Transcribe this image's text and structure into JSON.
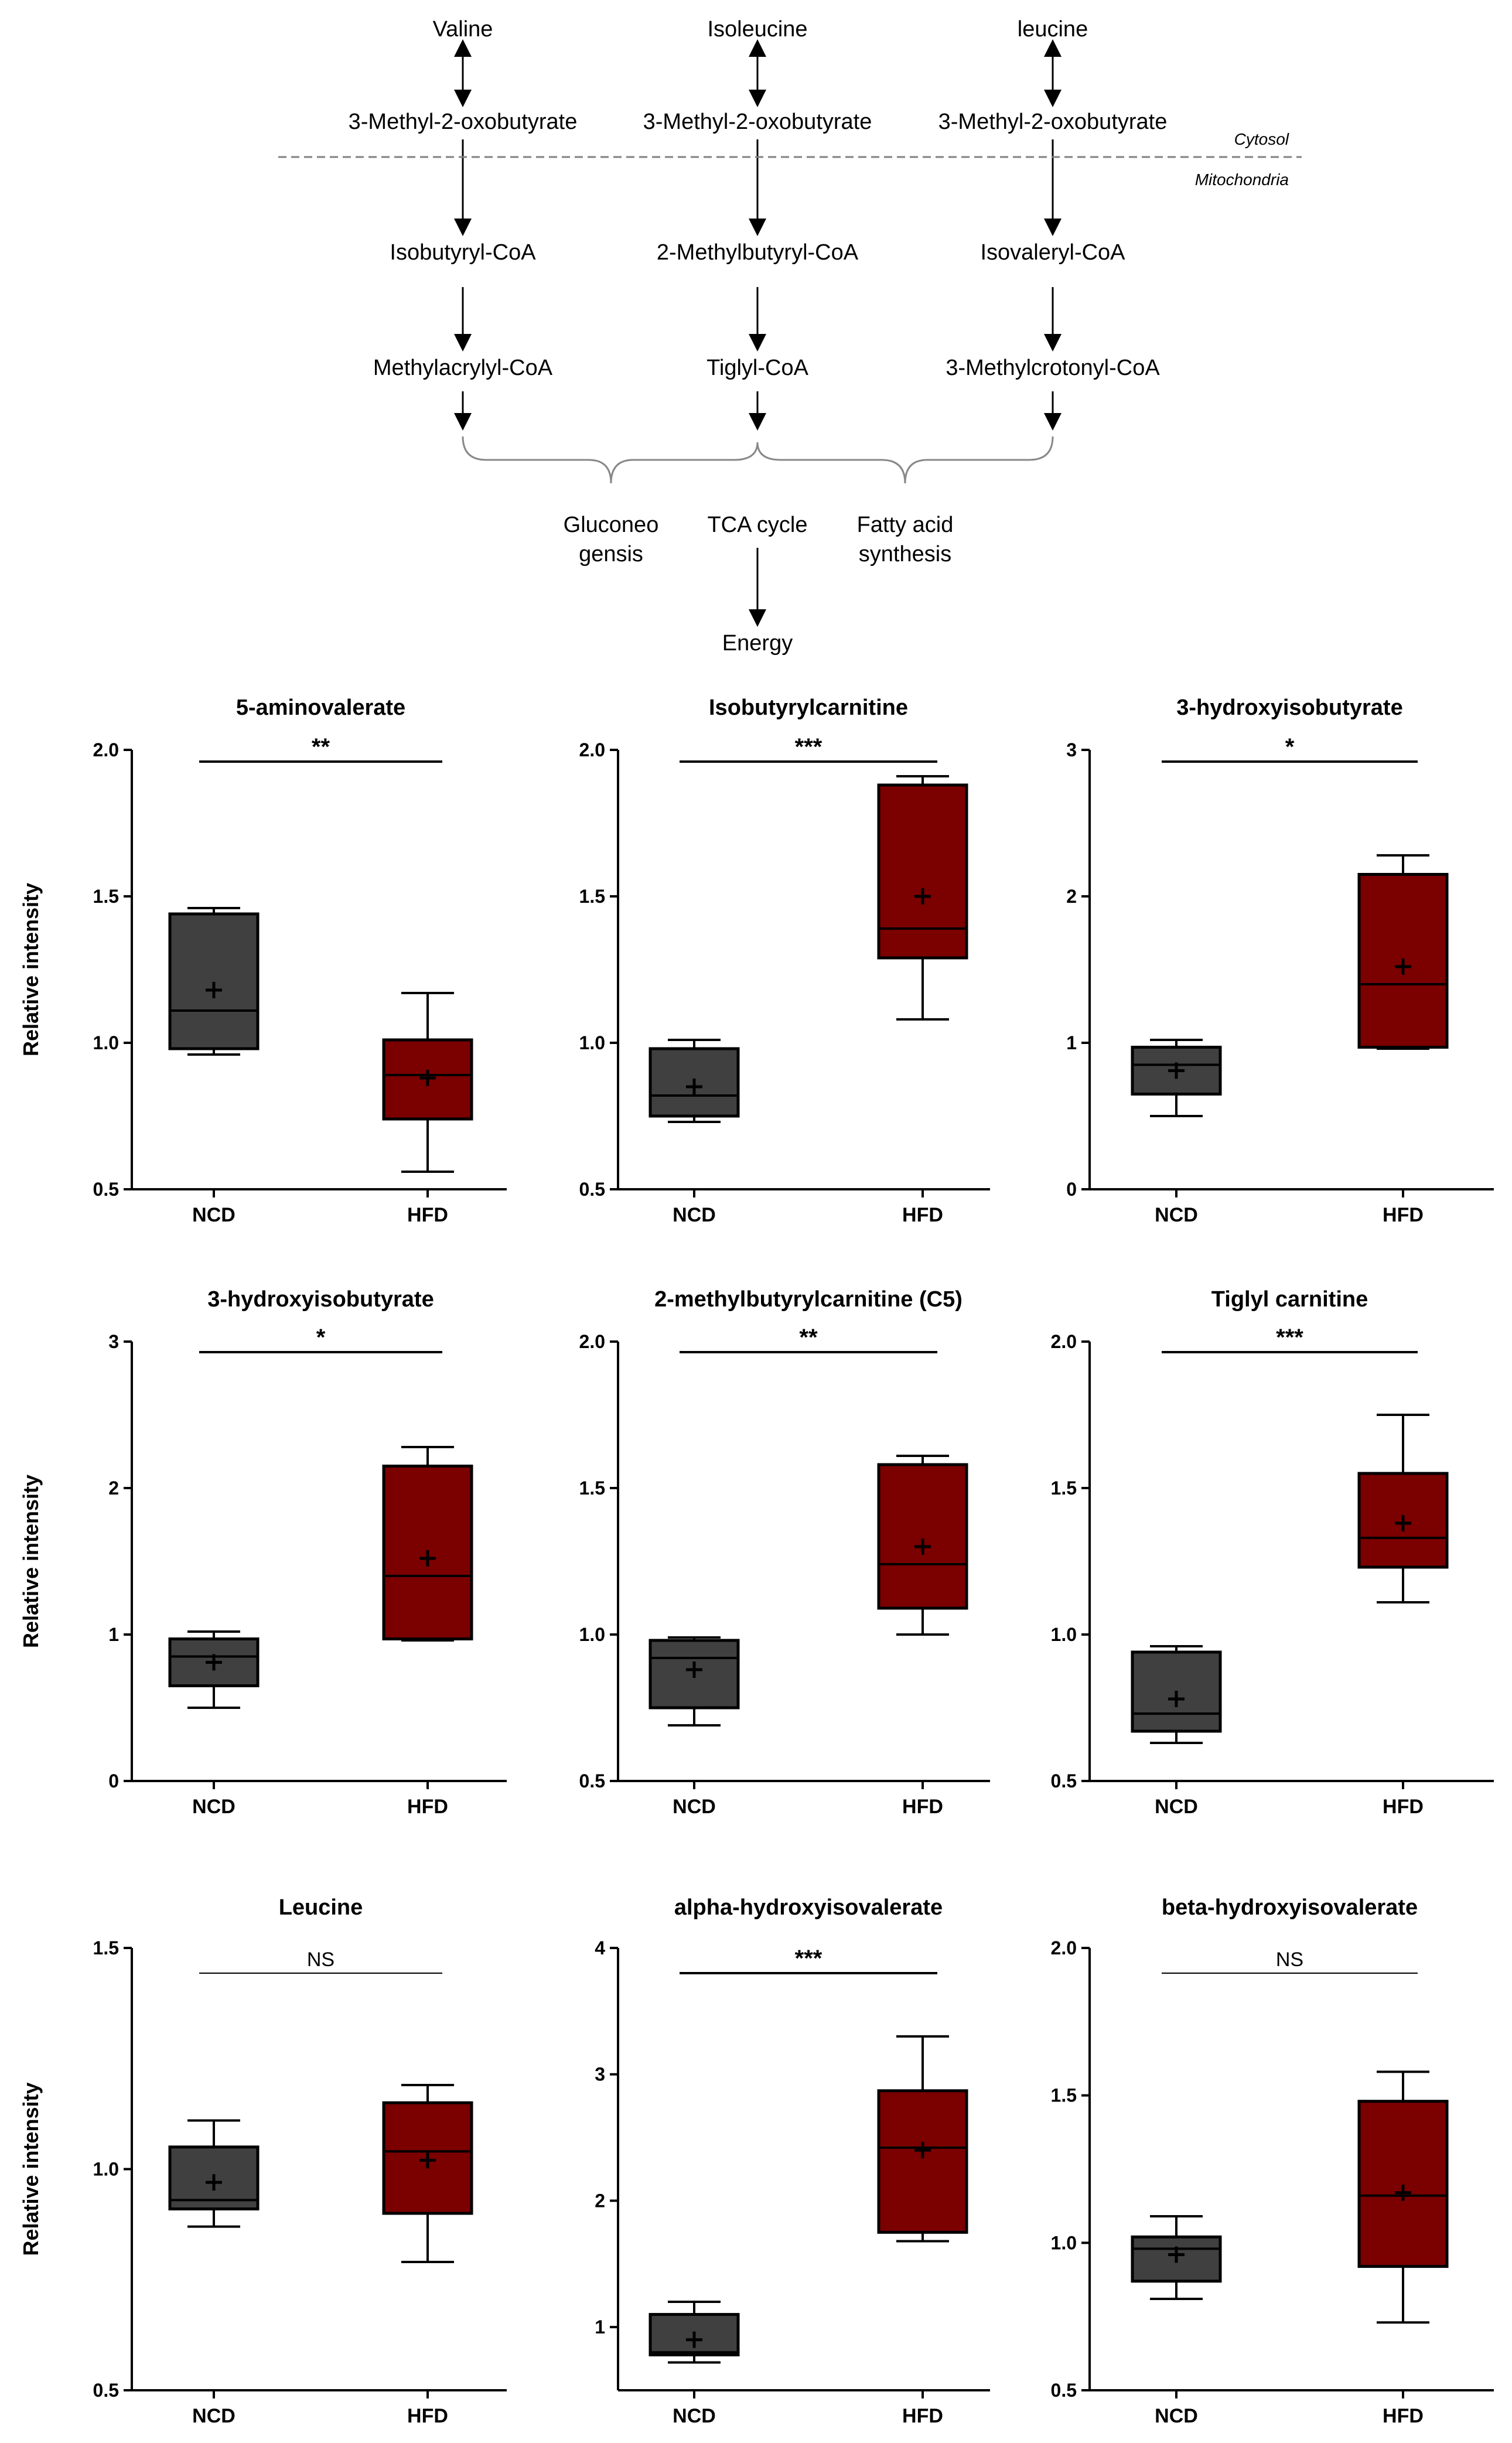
{
  "pathway": {
    "aminoacids": [
      "Valine",
      "Isoleucine",
      "leucine"
    ],
    "ketoacids": [
      "3-Methyl-2-oxobutyrate",
      "3-Methyl-2-oxobutyrate",
      "3-Methyl-2-oxobutyrate"
    ],
    "cytosol_label": "Cytosol",
    "mito_label": "Mitochondria",
    "acylcoa": [
      "Isobutyryl-CoA",
      "2-Methylbutyryl-CoA",
      "Isovaleryl-CoA"
    ],
    "enoylcoa": [
      "Methylacrylyl-CoA",
      "Tiglyl-CoA",
      "3-Methylcrotonyl-CoA"
    ],
    "gluconeo": [
      "Gluconeo",
      "gensis"
    ],
    "tca": "TCA cycle",
    "fatty": [
      "Fatty acid",
      "synthesis"
    ],
    "energy": "Energy"
  },
  "y_axis_title": "Relative intensity",
  "colors": {
    "ncd": "#404040",
    "hfd": "#7b0000",
    "line": "#000000"
  },
  "chart_data": [
    {
      "type": "boxplot",
      "title": "5-aminovalerate",
      "sig": "**",
      "ylim": [
        0.5,
        2.0
      ],
      "yticks": [
        "0.5",
        "1.0",
        "1.5",
        "2.0"
      ],
      "categories": [
        "NCD",
        "HFD"
      ],
      "boxes": [
        {
          "min": 0.96,
          "q1": 0.98,
          "median": 1.11,
          "q3": 1.44,
          "max": 1.46,
          "mean": 1.18
        },
        {
          "min": 0.56,
          "q1": 0.74,
          "median": 0.89,
          "q3": 1.01,
          "max": 1.17,
          "mean": 0.88
        }
      ]
    },
    {
      "type": "boxplot",
      "title": "Isobutyrylcarnitine",
      "sig": "***",
      "ylim": [
        0.5,
        2.0
      ],
      "yticks": [
        "0.5",
        "1.0",
        "1.5",
        "2.0"
      ],
      "categories": [
        "NCD",
        "HFD"
      ],
      "boxes": [
        {
          "min": 0.73,
          "q1": 0.75,
          "median": 0.82,
          "q3": 0.98,
          "max": 1.01,
          "mean": 0.85
        },
        {
          "min": 1.08,
          "q1": 1.29,
          "median": 1.39,
          "q3": 1.88,
          "max": 1.91,
          "mean": 1.5
        }
      ]
    },
    {
      "type": "boxplot",
      "title": "3-hydroxyisobutyrate",
      "sig": "*",
      "ylim": [
        0,
        3
      ],
      "yticks": [
        "0",
        "1",
        "2",
        "3"
      ],
      "categories": [
        "NCD",
        "HFD"
      ],
      "boxes": [
        {
          "min": 0.5,
          "q1": 0.65,
          "median": 0.85,
          "q3": 0.97,
          "max": 1.02,
          "mean": 0.81
        },
        {
          "min": 0.96,
          "q1": 0.97,
          "median": 1.4,
          "q3": 2.15,
          "max": 2.28,
          "mean": 1.52
        }
      ]
    },
    {
      "type": "boxplot",
      "title": "3-hydroxyisobutyrate",
      "sig": "*",
      "ylim": [
        0,
        3
      ],
      "yticks": [
        "0",
        "1",
        "2",
        "3"
      ],
      "categories": [
        "NCD",
        "HFD"
      ],
      "boxes": [
        {
          "min": 0.5,
          "q1": 0.65,
          "median": 0.85,
          "q3": 0.97,
          "max": 1.02,
          "mean": 0.81
        },
        {
          "min": 0.96,
          "q1": 0.97,
          "median": 1.4,
          "q3": 2.15,
          "max": 2.28,
          "mean": 1.52
        }
      ]
    },
    {
      "type": "boxplot",
      "title": "2-methylbutyrylcarnitine (C5)",
      "sig": "**",
      "ylim": [
        0.5,
        2.0
      ],
      "yticks": [
        "0.5",
        "1.0",
        "1.5",
        "2.0"
      ],
      "categories": [
        "NCD",
        "HFD"
      ],
      "boxes": [
        {
          "min": 0.69,
          "q1": 0.75,
          "median": 0.92,
          "q3": 0.98,
          "max": 0.99,
          "mean": 0.88
        },
        {
          "min": 1.0,
          "q1": 1.09,
          "median": 1.24,
          "q3": 1.58,
          "max": 1.61,
          "mean": 1.3
        }
      ]
    },
    {
      "type": "boxplot",
      "title": "Tiglyl carnitine",
      "sig": "***",
      "ylim": [
        0.5,
        2.0
      ],
      "yticks": [
        "0.5",
        "1.0",
        "1.5",
        "2.0"
      ],
      "categories": [
        "NCD",
        "HFD"
      ],
      "boxes": [
        {
          "min": 0.63,
          "q1": 0.67,
          "median": 0.73,
          "q3": 0.94,
          "max": 0.96,
          "mean": 0.78
        },
        {
          "min": 1.11,
          "q1": 1.23,
          "median": 1.33,
          "q3": 1.55,
          "max": 1.75,
          "mean": 1.38
        }
      ]
    },
    {
      "type": "boxplot",
      "title": "Leucine",
      "sig": "NS",
      "ylim": [
        0.5,
        1.5
      ],
      "yticks": [
        "0.5",
        "1.0",
        "1.5"
      ],
      "categories": [
        "NCD",
        "HFD"
      ],
      "boxes": [
        {
          "min": 0.87,
          "q1": 0.91,
          "median": 0.93,
          "q3": 1.05,
          "max": 1.11,
          "mean": 0.97
        },
        {
          "min": 0.79,
          "q1": 0.9,
          "median": 1.04,
          "q3": 1.15,
          "max": 1.19,
          "mean": 1.02
        }
      ]
    },
    {
      "type": "boxplot",
      "title": "alpha-hydroxyisovalerate",
      "sig": "***",
      "ylim": [
        0.5,
        4
      ],
      "yticks": [
        "1",
        "2",
        "3",
        "4"
      ],
      "categories": [
        "NCD",
        "HFD"
      ],
      "boxes": [
        {
          "min": 0.72,
          "q1": 0.78,
          "median": 0.8,
          "q3": 1.1,
          "max": 1.2,
          "mean": 0.9
        },
        {
          "min": 1.68,
          "q1": 1.75,
          "median": 2.42,
          "q3": 2.87,
          "max": 3.3,
          "mean": 2.4
        }
      ]
    },
    {
      "type": "boxplot",
      "title": "beta-hydroxyisovalerate",
      "sig": "NS",
      "ylim": [
        0.5,
        2.0
      ],
      "yticks": [
        "0.5",
        "1.0",
        "1.5",
        "2.0"
      ],
      "categories": [
        "NCD",
        "HFD"
      ],
      "boxes": [
        {
          "min": 0.81,
          "q1": 0.87,
          "median": 0.98,
          "q3": 1.02,
          "max": 1.09,
          "mean": 0.96
        },
        {
          "min": 0.73,
          "q1": 0.92,
          "median": 1.16,
          "q3": 1.48,
          "max": 1.58,
          "mean": 1.17
        }
      ]
    }
  ]
}
